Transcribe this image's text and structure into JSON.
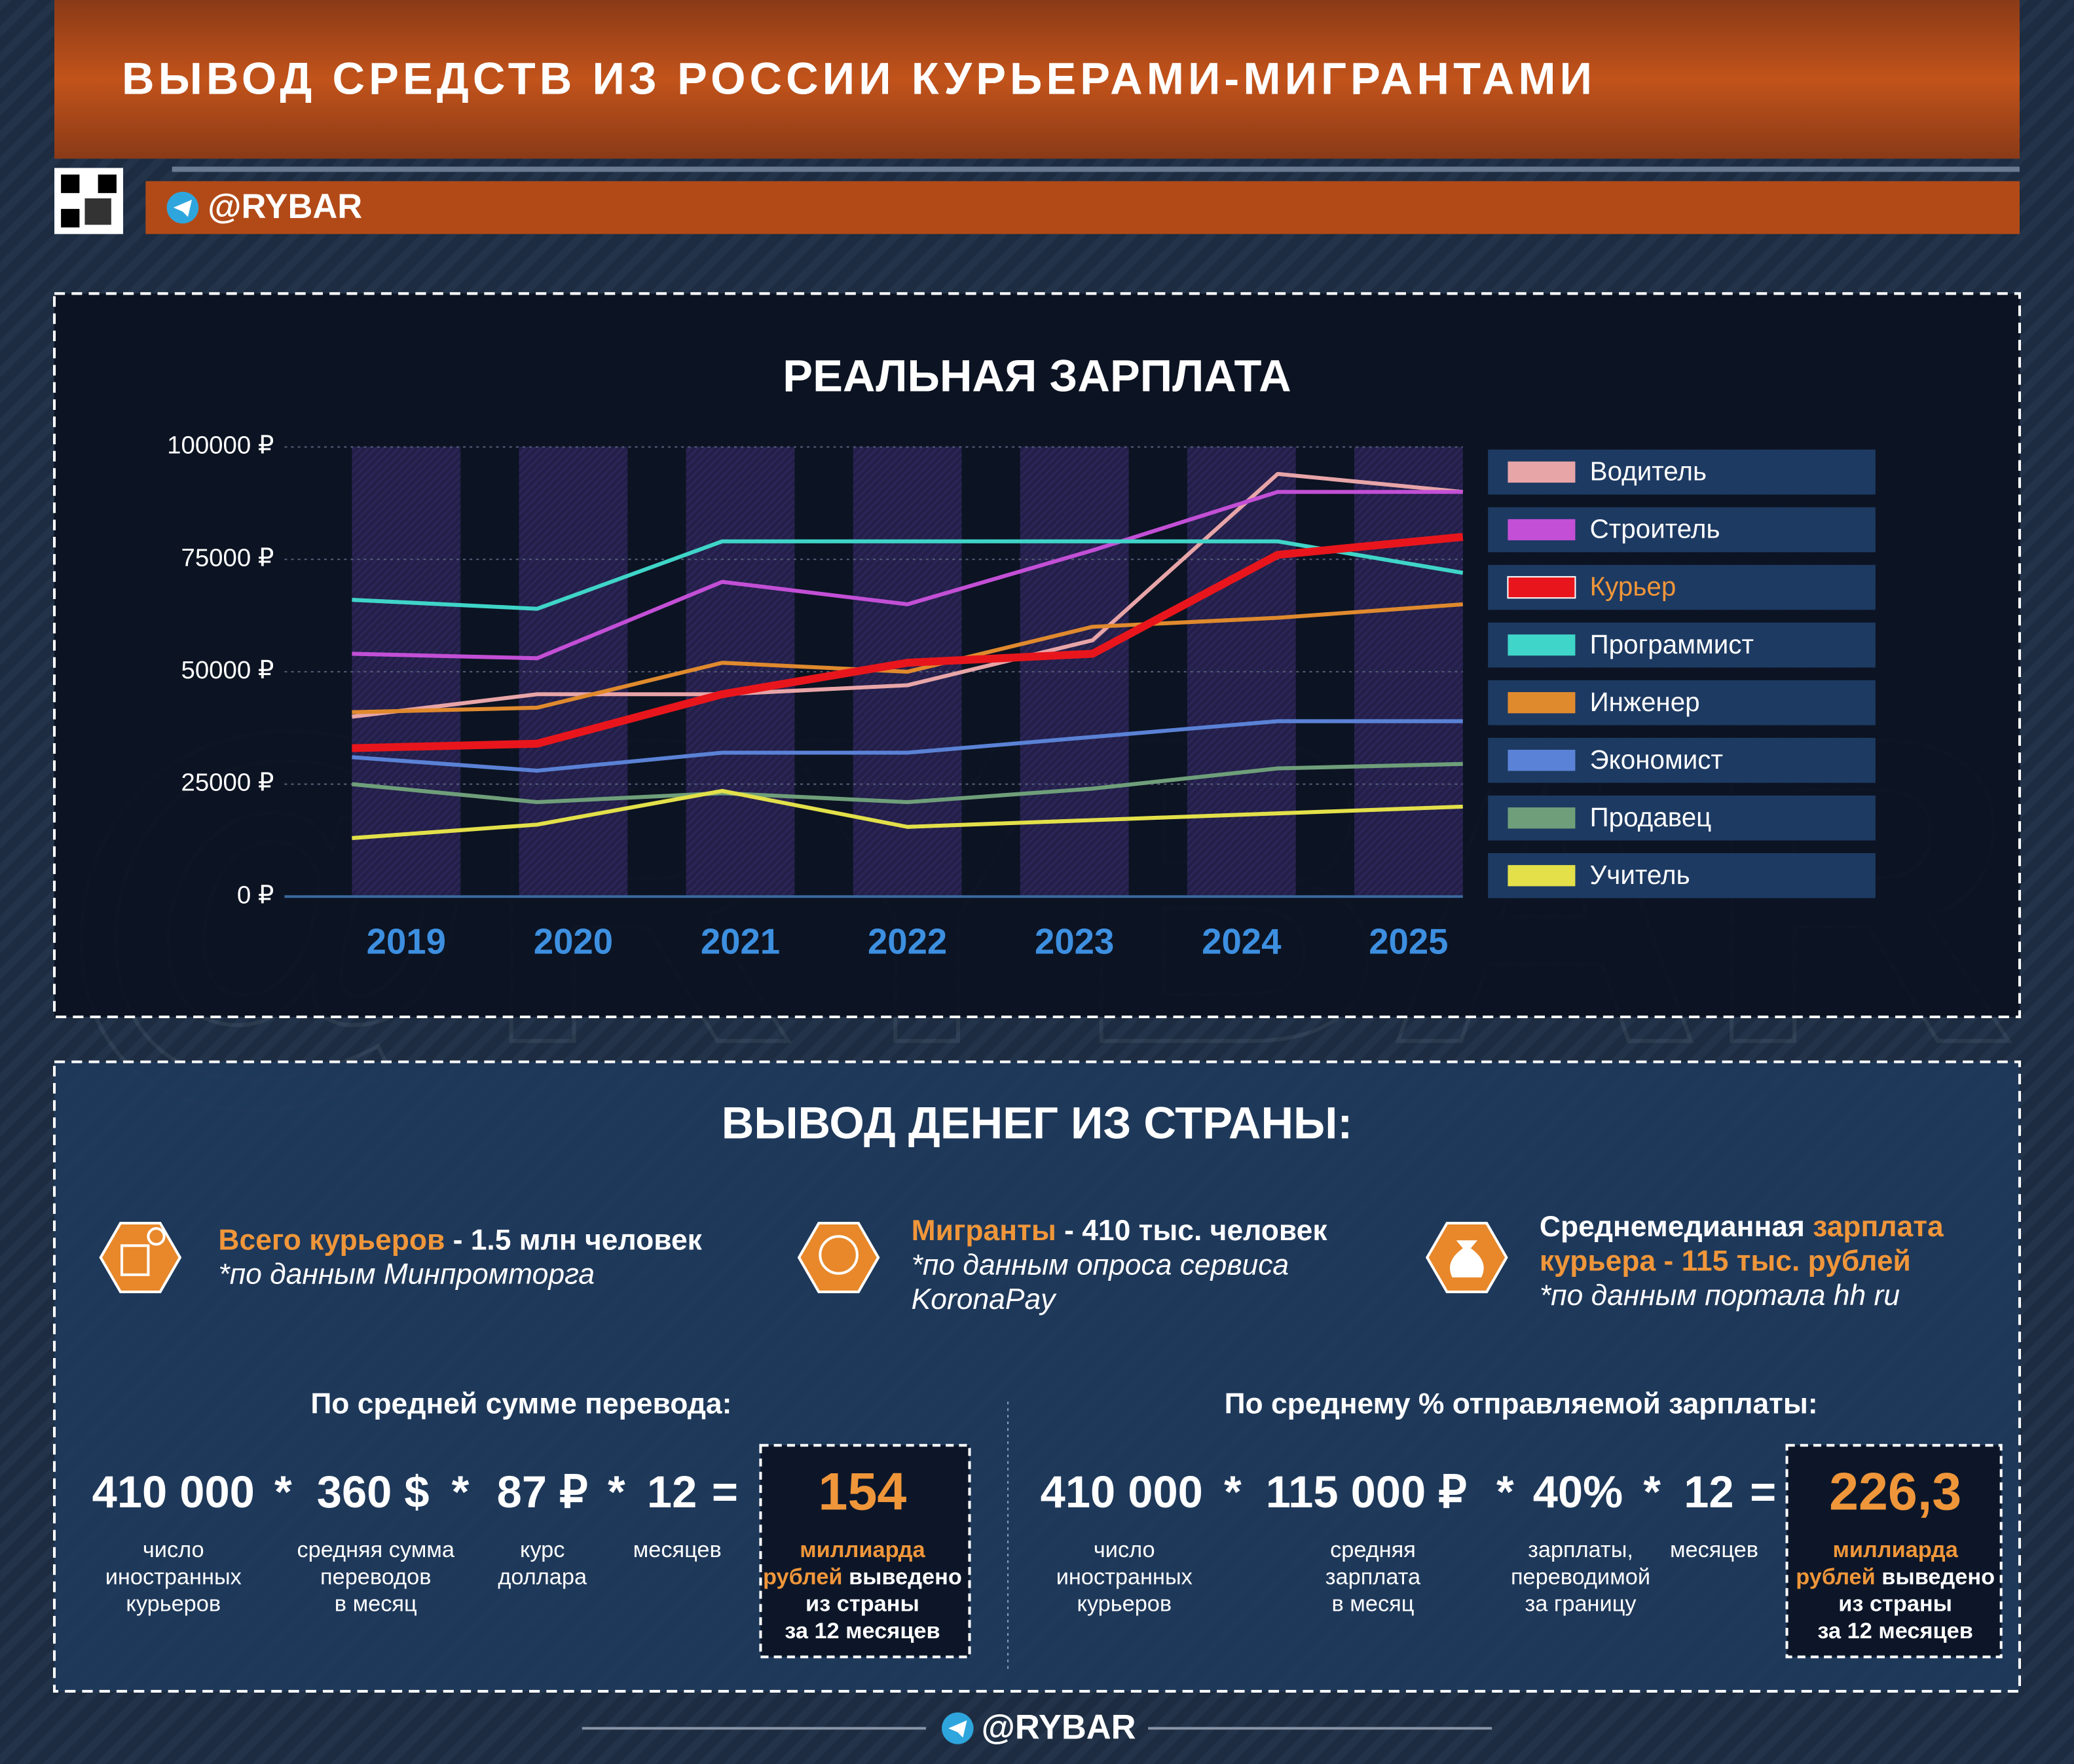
{
  "header": {
    "title": "ВЫВОД СРЕДСТВ ИЗ РОССИИ КУРЬЕРАМИ-МИГРАНТАМИ",
    "handle": "@RYBAR"
  },
  "chart_data": {
    "type": "line",
    "title": "РЕАЛЬНАЯ ЗАРПЛАТА",
    "categories": [
      "2019",
      "2020",
      "2021",
      "2022",
      "2023",
      "2024",
      "2025"
    ],
    "ylim": [
      0,
      100000
    ],
    "yticks": [
      {
        "value": 0,
        "label": "0 ₽"
      },
      {
        "value": 25000,
        "label": "25000 ₽"
      },
      {
        "value": 50000,
        "label": "50000 ₽"
      },
      {
        "value": 75000,
        "label": "75000 ₽"
      },
      {
        "value": 100000,
        "label": "100000 ₽"
      }
    ],
    "grid": true,
    "legend": "right",
    "series": [
      {
        "name": "Водитель",
        "color": "#e8a5a8",
        "values": [
          40000,
          45000,
          45000,
          47000,
          57000,
          94000,
          90000
        ]
      },
      {
        "name": "Строитель",
        "color": "#c34fd6",
        "values": [
          54000,
          53000,
          70000,
          65000,
          77000,
          90000,
          90000
        ]
      },
      {
        "name": "Курьер",
        "color": "#e8161c",
        "values": [
          33000,
          34000,
          45000,
          52000,
          54000,
          76000,
          80000
        ]
      },
      {
        "name": "Программист",
        "color": "#3fd5c8",
        "values": [
          66000,
          64000,
          79000,
          79000,
          79000,
          79000,
          72000
        ]
      },
      {
        "name": "Инженер",
        "color": "#e08a2e",
        "values": [
          41000,
          42000,
          52000,
          50000,
          60000,
          62000,
          65000
        ]
      },
      {
        "name": "Экономист",
        "color": "#5a82d6",
        "values": [
          31000,
          28000,
          32000,
          32000,
          35500,
          39000,
          39000
        ]
      },
      {
        "name": "Продавец",
        "color": "#6f9f7a",
        "values": [
          25000,
          21000,
          23000,
          21000,
          24000,
          28500,
          29500
        ]
      },
      {
        "name": "Учитель",
        "color": "#e3e04a",
        "values": [
          13000,
          16000,
          23500,
          15500,
          17000,
          18500,
          20000
        ]
      }
    ]
  },
  "outflow": {
    "title": "ВЫВОД ДЕНЕГ ИЗ СТРАНЫ:",
    "facts": [
      {
        "lines": [
          [
            "Всего курьеров",
            " - 1.5 млн человек"
          ]
        ],
        "note": [
          "*по данным Минпромторга"
        ]
      },
      {
        "lines": [
          [
            "Мигранты",
            " - 410 тыс. человек"
          ]
        ],
        "note": [
          "*по данным опроса сервиса",
          "KoronaPay"
        ]
      },
      {
        "lines": [
          [
            "Среднемедианная ",
            "зарплата"
          ],
          [
            "курьера - 115 тыс. рублей"
          ]
        ],
        "note": [
          "*по данным портала hh ru"
        ]
      }
    ],
    "formulas": [
      {
        "title": "По средней сумме перевода:",
        "terms": [
          "410 000",
          "*",
          "360 $",
          "*",
          "87 ₽",
          "*",
          "12",
          "="
        ],
        "captions": [
          [
            "число",
            "иностранных",
            "курьеров"
          ],
          [
            "средняя сумма",
            "переводов",
            "в месяц"
          ],
          [
            "курс",
            "доллара"
          ],
          [
            "месяцев"
          ]
        ],
        "result": "154",
        "result_caption": [
          [
            "миллиарда"
          ],
          [
            "рублей",
            " выведено"
          ],
          [
            "из страны"
          ],
          [
            "за 12 месяцев"
          ]
        ]
      },
      {
        "title": "По среднему % отправляемой зарплаты:",
        "terms": [
          "410 000",
          "*",
          "115 000 ₽",
          "*",
          "40%",
          "*",
          "12",
          "="
        ],
        "captions": [
          [
            "число",
            "иностранных",
            "курьеров"
          ],
          [
            "средняя",
            "зарплата",
            "в месяц"
          ],
          [
            "зарплаты,",
            "переводимой",
            "за границу"
          ],
          [
            "месяцев"
          ]
        ],
        "result": "226,3",
        "result_caption": [
          [
            "миллиарда"
          ],
          [
            "рублей",
            " выведено"
          ],
          [
            "из страны"
          ],
          [
            "за 12 месяцев"
          ]
        ]
      }
    ]
  }
}
